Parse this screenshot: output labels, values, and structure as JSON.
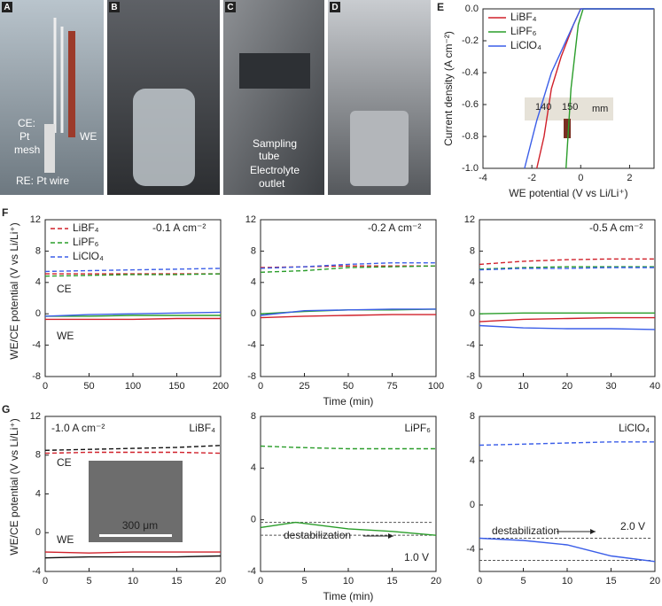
{
  "photos": [
    {
      "panel": "A",
      "labels": [
        "CE:",
        "Pt",
        "mesh",
        "WE",
        "RE: Pt wire"
      ]
    },
    {
      "panel": "B"
    },
    {
      "panel": "C",
      "labels": [
        "Sampling",
        "tube",
        "Electrolyte",
        "outlet"
      ]
    },
    {
      "panel": "D"
    }
  ],
  "chart_data": [
    {
      "type": "line",
      "panel": "E",
      "xlabel": "WE potential (V vs Li/Li⁺)",
      "ylabel": "Current density (A cm⁻²)",
      "xlim": [
        -4,
        3
      ],
      "xticks": [
        -4,
        -2,
        0,
        2
      ],
      "ylim": [
        -1,
        0
      ],
      "yticks": [
        {
          "value": -1,
          "label": "-1.0"
        },
        {
          "value": -0.8,
          "label": "-0.8"
        },
        {
          "value": -0.6,
          "label": "-0.6"
        },
        {
          "value": -0.4,
          "label": "-0.4"
        },
        {
          "value": -0.2,
          "label": "-0.2"
        },
        {
          "value": 0,
          "label": "0.0"
        }
      ],
      "legend": "upper left",
      "series": [
        {
          "name": "LiBF₄",
          "color": "#d0202a",
          "x": [
            -1.8,
            -1.5,
            -1.2,
            -0.8,
            -0.3,
            0,
            3
          ],
          "values": [
            -1,
            -0.8,
            -0.5,
            -0.3,
            -0.1,
            0,
            0
          ]
        },
        {
          "name": "LiPF₆",
          "color": "#2a9d2a",
          "x": [
            -0.6,
            -0.4,
            -0.1,
            0.1,
            3
          ],
          "values": [
            -1,
            -0.5,
            -0.1,
            0,
            0
          ]
        },
        {
          "name": "LiClO₄",
          "color": "#3b5ee8",
          "x": [
            -2.3,
            -1.8,
            -1.2,
            -0.6,
            0,
            3
          ],
          "values": [
            -1,
            -0.7,
            -0.4,
            -0.2,
            0,
            0
          ]
        }
      ],
      "annotations": [
        "140",
        "150",
        "mm"
      ]
    },
    {
      "type": "line",
      "panel": "F",
      "ylabel": "WE/CE potential (V vs Li/Li⁺)",
      "xlim": [
        0,
        200
      ],
      "xticks": [
        0,
        50,
        100,
        150,
        200
      ],
      "ylim": [
        -8,
        12
      ],
      "yticks": [
        -8,
        -4,
        0,
        4,
        8,
        12
      ],
      "legend": "upper left",
      "x": [
        0,
        50,
        100,
        150,
        200
      ],
      "series": [
        {
          "name": "LiBF₄",
          "color": "#d0202a",
          "dash": true,
          "values": [
            5.1,
            5.1,
            5.1,
            5.1,
            5.1
          ]
        },
        {
          "name": "LiPF₆",
          "color": "#2a9d2a",
          "dash": true,
          "values": [
            4.8,
            4.9,
            5.0,
            5.0,
            5.1
          ]
        },
        {
          "name": "LiClO₄",
          "color": "#3b5ee8",
          "dash": true,
          "values": [
            5.4,
            5.5,
            5.6,
            5.7,
            5.8
          ]
        },
        {
          "color": "#d0202a",
          "values": [
            -0.7,
            -0.7,
            -0.7,
            -0.6,
            -0.6
          ]
        },
        {
          "color": "#2a9d2a",
          "values": [
            -0.3,
            -0.3,
            -0.2,
            -0.2,
            -0.2
          ]
        },
        {
          "color": "#3b5ee8",
          "values": [
            -0.3,
            -0.1,
            0,
            0.1,
            0.2
          ]
        }
      ],
      "annotations": [
        "-0.1 A cm⁻²",
        "CE",
        "WE"
      ]
    },
    {
      "type": "line",
      "xlabel": "Time (min)",
      "xlim": [
        0,
        100
      ],
      "xticks": [
        0,
        25,
        50,
        75,
        100
      ],
      "ylim": [
        -8,
        12
      ],
      "yticks": [
        -8,
        -4,
        0,
        4,
        8,
        12
      ],
      "x": [
        0,
        25,
        50,
        75,
        100
      ],
      "series": [
        {
          "color": "#d0202a",
          "dash": true,
          "values": [
            5.9,
            6.0,
            6.1,
            6.1,
            6.1
          ]
        },
        {
          "color": "#2a9d2a",
          "dash": true,
          "values": [
            5.3,
            5.5,
            5.9,
            6.0,
            6.1
          ]
        },
        {
          "color": "#3b5ee8",
          "dash": true,
          "values": [
            5.8,
            6.0,
            6.3,
            6.5,
            6.5
          ]
        },
        {
          "color": "#d0202a",
          "values": [
            -0.5,
            -0.3,
            -0.2,
            -0.1,
            -0.1
          ]
        },
        {
          "color": "#2a9d2a",
          "values": [
            0,
            0.3,
            0.5,
            0.5,
            0.6
          ]
        },
        {
          "color": "#3b5ee8",
          "values": [
            -0.2,
            0.4,
            0.5,
            0.6,
            0.6
          ]
        }
      ],
      "annotations": [
        "-0.2 A cm⁻²"
      ]
    },
    {
      "type": "line",
      "xlim": [
        0,
        40
      ],
      "xticks": [
        0,
        10,
        20,
        30,
        40
      ],
      "ylim": [
        -8,
        12
      ],
      "yticks": [
        -8,
        -4,
        0,
        4,
        8,
        12
      ],
      "x": [
        0,
        10,
        20,
        30,
        40
      ],
      "series": [
        {
          "color": "#d0202a",
          "dash": true,
          "values": [
            6.3,
            6.7,
            6.9,
            7.0,
            7.0
          ]
        },
        {
          "color": "#2a9d2a",
          "dash": true,
          "values": [
            5.7,
            5.9,
            6.0,
            6.0,
            6.0
          ]
        },
        {
          "color": "#3b5ee8",
          "dash": true,
          "values": [
            5.6,
            5.8,
            5.8,
            5.9,
            5.9
          ]
        },
        {
          "color": "#d0202a",
          "values": [
            -1.0,
            -0.7,
            -0.6,
            -0.5,
            -0.5
          ]
        },
        {
          "color": "#2a9d2a",
          "values": [
            0,
            0.1,
            0.1,
            0.1,
            0.1
          ]
        },
        {
          "color": "#3b5ee8",
          "values": [
            -1.5,
            -1.8,
            -1.9,
            -1.9,
            -2.0
          ]
        }
      ],
      "annotations": [
        "-0.5 A cm⁻²"
      ]
    },
    {
      "type": "line",
      "panel": "G",
      "title": "LiBF₄",
      "title_color": "#d0202a",
      "ylabel": "WE/CE potential (V vs Li/Li⁺)",
      "xlim": [
        0,
        20
      ],
      "xticks": [
        0,
        5,
        10,
        15,
        20
      ],
      "ylim": [
        -4,
        12
      ],
      "yticks": [
        -4,
        0,
        4,
        8,
        12
      ],
      "x": [
        0,
        5,
        10,
        15,
        20
      ],
      "series": [
        {
          "color": "#d0202a",
          "dash": true,
          "values": [
            8.2,
            8.3,
            8.3,
            8.3,
            8.2
          ]
        },
        {
          "color": "#111111",
          "dash": true,
          "values": [
            8.5,
            8.6,
            8.7,
            8.8,
            9.0
          ]
        },
        {
          "color": "#d0202a",
          "values": [
            -2.0,
            -2.1,
            -2.0,
            -2.0,
            -2.0
          ]
        },
        {
          "color": "#111111",
          "values": [
            -2.6,
            -2.5,
            -2.5,
            -2.5,
            -2.4
          ]
        }
      ],
      "annotations": [
        "-1.0 A cm⁻²",
        "CE",
        "300 μm",
        "WE"
      ]
    },
    {
      "type": "line",
      "title": "LiPF₆",
      "title_color": "#2a9d2a",
      "xlabel": "Time (min)",
      "xlim": [
        0,
        20
      ],
      "xticks": [
        0,
        5,
        10,
        15,
        20
      ],
      "ylim": [
        -4,
        8
      ],
      "yticks": [
        -4,
        0,
        4,
        8
      ],
      "x": [
        0,
        4,
        10,
        15,
        20
      ],
      "series": [
        {
          "color": "#2a9d2a",
          "dash": true,
          "values": [
            5.7,
            5.6,
            5.5,
            5.5,
            5.5
          ]
        },
        {
          "color": "#2a9d2a",
          "values": [
            -0.6,
            -0.2,
            -0.7,
            -0.9,
            -1.2
          ]
        }
      ],
      "hlines": [
        -0.2,
        -1.2
      ],
      "annotations": [
        "destabilization",
        "1.0 V"
      ]
    },
    {
      "type": "line",
      "title": "LiClO₄",
      "title_color": "#3b5ee8",
      "xlim": [
        0,
        20
      ],
      "xticks": [
        0,
        5,
        10,
        15,
        20
      ],
      "ylim": [
        -6,
        8
      ],
      "yticks": [
        -4,
        0,
        4,
        8
      ],
      "x": [
        0,
        5,
        10,
        15,
        20
      ],
      "series": [
        {
          "color": "#3b5ee8",
          "dash": true,
          "values": [
            5.4,
            5.5,
            5.6,
            5.7,
            5.7
          ]
        },
        {
          "color": "#3b5ee8",
          "values": [
            -3.0,
            -3.2,
            -3.6,
            -4.6,
            -5.1
          ]
        }
      ],
      "hlines": [
        -3.0,
        -5.0
      ],
      "annotations": [
        "destabilization",
        "2.0 V"
      ]
    }
  ]
}
